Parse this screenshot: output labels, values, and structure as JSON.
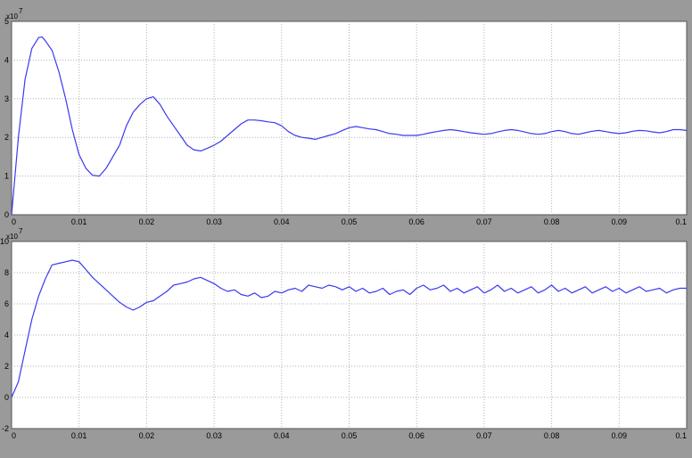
{
  "colors": {
    "background": "#9a9a9a",
    "axes": "#ffffff",
    "grid": "#b0b0b0",
    "trace": "#3a3af0"
  },
  "chart_data": [
    {
      "type": "line",
      "title": "",
      "xlabel": "",
      "ylabel": "",
      "xlim": [
        0,
        0.1
      ],
      "ylim": [
        0,
        5
      ],
      "grid": true,
      "exponent_label": "x10",
      "exponent_power": "7",
      "x_ticks": [
        "0",
        "0.01",
        "0.02",
        "0.03",
        "0.04",
        "0.05",
        "0.06",
        "0.07",
        "0.08",
        "0.09",
        "0.1"
      ],
      "y_ticks": [
        "0",
        "1",
        "2",
        "3",
        "4",
        "5"
      ],
      "series": [
        {
          "x": [
            0,
            0.001,
            0.002,
            0.003,
            0.004,
            0.0045,
            0.005,
            0.006,
            0.007,
            0.008,
            0.009,
            0.01,
            0.011,
            0.012,
            0.013,
            0.014,
            0.015,
            0.016,
            0.017,
            0.018,
            0.019,
            0.02,
            0.021,
            0.022,
            0.023,
            0.024,
            0.025,
            0.026,
            0.027,
            0.028,
            0.029,
            0.03,
            0.031,
            0.032,
            0.033,
            0.034,
            0.035,
            0.036,
            0.037,
            0.038,
            0.039,
            0.04,
            0.041,
            0.042,
            0.043,
            0.044,
            0.045,
            0.046,
            0.047,
            0.048,
            0.049,
            0.05,
            0.051,
            0.052,
            0.053,
            0.054,
            0.055,
            0.056,
            0.057,
            0.058,
            0.059,
            0.06,
            0.061,
            0.062,
            0.063,
            0.064,
            0.065,
            0.066,
            0.067,
            0.068,
            0.069,
            0.07,
            0.071,
            0.072,
            0.073,
            0.074,
            0.075,
            0.076,
            0.077,
            0.078,
            0.079,
            0.08,
            0.081,
            0.082,
            0.083,
            0.084,
            0.085,
            0.086,
            0.087,
            0.088,
            0.089,
            0.09,
            0.091,
            0.092,
            0.093,
            0.094,
            0.095,
            0.096,
            0.097,
            0.098,
            0.099,
            0.1
          ],
          "y": [
            0,
            2.0,
            3.5,
            4.3,
            4.58,
            4.6,
            4.5,
            4.25,
            3.7,
            3.0,
            2.2,
            1.55,
            1.2,
            1.02,
            1.0,
            1.2,
            1.5,
            1.8,
            2.3,
            2.65,
            2.85,
            3.0,
            3.05,
            2.85,
            2.55,
            2.3,
            2.05,
            1.8,
            1.68,
            1.65,
            1.72,
            1.8,
            1.9,
            2.05,
            2.2,
            2.35,
            2.45,
            2.45,
            2.43,
            2.4,
            2.38,
            2.3,
            2.15,
            2.05,
            2.0,
            1.98,
            1.95,
            2.0,
            2.05,
            2.1,
            2.18,
            2.25,
            2.28,
            2.25,
            2.22,
            2.2,
            2.15,
            2.1,
            2.08,
            2.05,
            2.05,
            2.05,
            2.08,
            2.12,
            2.15,
            2.18,
            2.2,
            2.18,
            2.15,
            2.12,
            2.1,
            2.08,
            2.1,
            2.14,
            2.18,
            2.2,
            2.18,
            2.14,
            2.1,
            2.08,
            2.1,
            2.15,
            2.18,
            2.15,
            2.1,
            2.08,
            2.12,
            2.16,
            2.18,
            2.15,
            2.12,
            2.1,
            2.12,
            2.16,
            2.18,
            2.17,
            2.14,
            2.12,
            2.15,
            2.2,
            2.2,
            2.18
          ]
        }
      ]
    },
    {
      "type": "line",
      "title": "",
      "xlabel": "",
      "ylabel": "",
      "xlim": [
        0,
        0.1
      ],
      "ylim": [
        -2,
        10
      ],
      "grid": true,
      "exponent_label": "x10",
      "exponent_power": "7",
      "x_ticks": [
        "0",
        "0.01",
        "0.02",
        "0.03",
        "0.04",
        "0.05",
        "0.06",
        "0.07",
        "0.08",
        "0.09",
        "0.1"
      ],
      "y_ticks": [
        "-2",
        "0",
        "2",
        "4",
        "6",
        "8",
        "10"
      ],
      "series": [
        {
          "x": [
            0,
            0.001,
            0.002,
            0.003,
            0.004,
            0.005,
            0.006,
            0.007,
            0.008,
            0.009,
            0.01,
            0.011,
            0.012,
            0.013,
            0.014,
            0.015,
            0.016,
            0.017,
            0.018,
            0.019,
            0.02,
            0.021,
            0.022,
            0.023,
            0.024,
            0.025,
            0.026,
            0.027,
            0.028,
            0.029,
            0.03,
            0.031,
            0.032,
            0.033,
            0.034,
            0.035,
            0.036,
            0.037,
            0.038,
            0.039,
            0.04,
            0.041,
            0.042,
            0.043,
            0.044,
            0.045,
            0.046,
            0.047,
            0.048,
            0.049,
            0.05,
            0.051,
            0.052,
            0.053,
            0.054,
            0.055,
            0.056,
            0.057,
            0.058,
            0.059,
            0.06,
            0.061,
            0.062,
            0.063,
            0.064,
            0.065,
            0.066,
            0.067,
            0.068,
            0.069,
            0.07,
            0.071,
            0.072,
            0.073,
            0.074,
            0.075,
            0.076,
            0.077,
            0.078,
            0.079,
            0.08,
            0.081,
            0.082,
            0.083,
            0.084,
            0.085,
            0.086,
            0.087,
            0.088,
            0.089,
            0.09,
            0.091,
            0.092,
            0.093,
            0.094,
            0.095,
            0.096,
            0.097,
            0.098,
            0.099,
            0.1
          ],
          "y": [
            0.0,
            1.0,
            3.0,
            5.0,
            6.5,
            7.6,
            8.5,
            8.6,
            8.7,
            8.8,
            8.7,
            8.2,
            7.7,
            7.3,
            6.9,
            6.5,
            6.1,
            5.8,
            5.6,
            5.8,
            6.1,
            6.2,
            6.5,
            6.8,
            7.2,
            7.3,
            7.4,
            7.6,
            7.7,
            7.5,
            7.3,
            7.0,
            6.8,
            6.9,
            6.6,
            6.5,
            6.7,
            6.4,
            6.5,
            6.8,
            6.7,
            6.9,
            7.0,
            6.8,
            7.2,
            7.1,
            7.0,
            7.2,
            7.1,
            6.9,
            7.1,
            6.8,
            7.0,
            6.7,
            6.8,
            7.0,
            6.6,
            6.8,
            6.9,
            6.6,
            7.0,
            7.2,
            6.9,
            7.0,
            7.2,
            6.8,
            7.0,
            6.7,
            6.9,
            7.1,
            6.7,
            6.9,
            7.2,
            6.8,
            7.0,
            6.7,
            6.9,
            7.1,
            6.7,
            6.9,
            7.2,
            6.8,
            7.0,
            6.7,
            6.9,
            7.1,
            6.7,
            6.9,
            7.1,
            6.8,
            7.0,
            6.7,
            6.9,
            7.1,
            6.8,
            6.9,
            7.0,
            6.7,
            6.9,
            7.0,
            7.0
          ]
        }
      ]
    }
  ]
}
